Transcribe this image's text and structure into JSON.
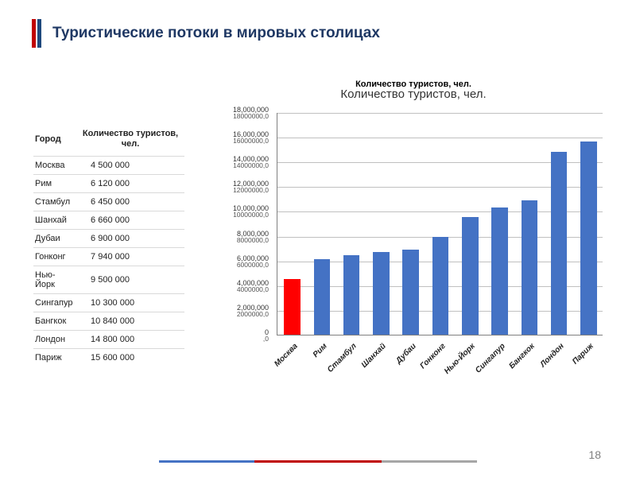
{
  "title": "Туристические потоки в мировых столицах",
  "title_bar_colors": [
    "#c00000",
    "#1f497d"
  ],
  "title_fontsize": 19,
  "title_color": "#1f3864",
  "table": {
    "columns": [
      "Город",
      "Количество туристов, чел."
    ],
    "rows": [
      [
        "Москва",
        "4 500 000"
      ],
      [
        "Рим",
        "6 120 000"
      ],
      [
        "Стамбул",
        "6 450 000"
      ],
      [
        "Шанхай",
        "6 660 000"
      ],
      [
        "Дубаи",
        "6 900 000"
      ],
      [
        "Гонконг",
        "7 940 000"
      ],
      [
        "Нью-Йорк",
        "9 500 000"
      ],
      [
        "Сингапур",
        "10 300 000"
      ],
      [
        "Бангкок",
        "10 840 000"
      ],
      [
        "Лондон",
        "14 800 000"
      ],
      [
        "Париж",
        "15 600 000"
      ]
    ],
    "font_size": 11,
    "border_color": "#d9d9d9"
  },
  "chart": {
    "type": "bar",
    "title_top": "Количество туристов, чел.",
    "title_main": "Количество туристов, чел.",
    "title_top_fontsize": 11,
    "title_main_fontsize": 15,
    "categories": [
      "Москва",
      "Рим",
      "Стамбул",
      "Шанхай",
      "Дубаи",
      "Гонконг",
      "Нью-Йорк",
      "Сингапур",
      "Бангкок",
      "Лондон",
      "Париж"
    ],
    "values": [
      4500000,
      6120000,
      6450000,
      6660000,
      6900000,
      7940000,
      9500000,
      10300000,
      10840000,
      14800000,
      15600000
    ],
    "highlight_index": 0,
    "bar_color": "#4472c4",
    "highlight_color": "#ff0000",
    "bar_width_ratio": 0.55,
    "ylim": [
      0,
      18000000
    ],
    "ytick_step": 2000000,
    "y_ticks_main": [
      "18,000,000",
      "16,000,000",
      "14,000,000",
      "12,000,000",
      "10,000,000",
      "8,000,000",
      "6,000,000",
      "4,000,000",
      "2,000,000",
      "0"
    ],
    "y_ticks_sub": [
      "18000000,0",
      "16000000,0",
      "14000000,0",
      "12000000,0",
      "10000000,0",
      "8000000,0",
      "6000000,0",
      "4000000,0",
      "2000000,0",
      ",0"
    ],
    "grid_color": "#c0c0c0",
    "axis_color": "#808080",
    "background_color": "#ffffff",
    "x_label_fontsize": 10,
    "y_label_fontsize": 9
  },
  "page_number": "18",
  "footer_colors": [
    "#4472c4",
    "#c00000",
    "#a6a6a6"
  ]
}
